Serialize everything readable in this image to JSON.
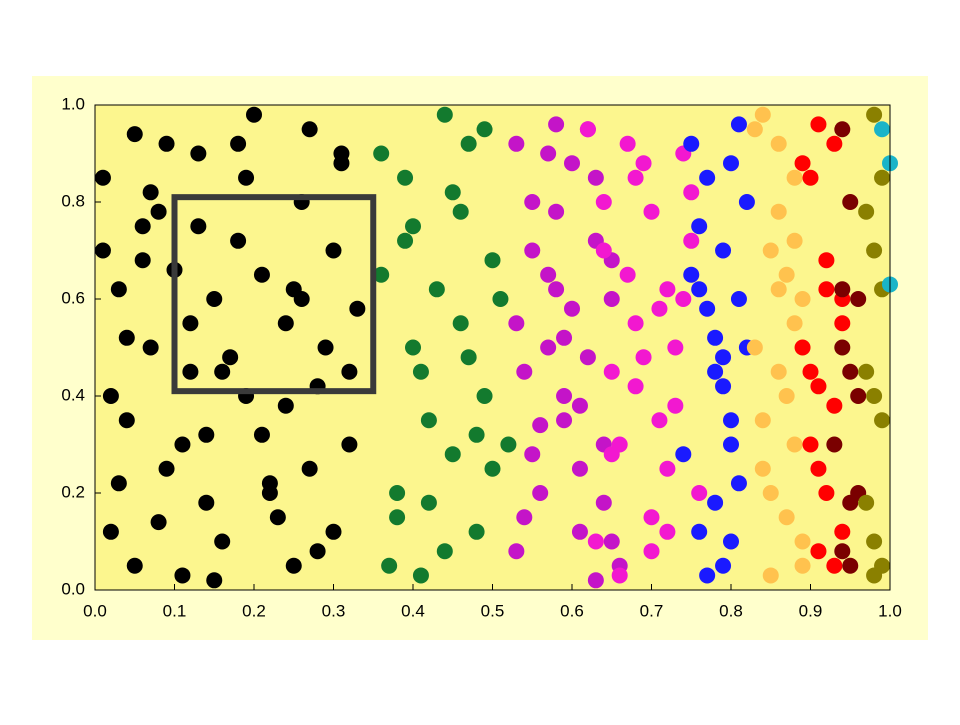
{
  "chart_data": {
    "type": "scatter",
    "xlim": [
      0,
      1
    ],
    "ylim": [
      0,
      1
    ],
    "xticks": [
      {
        "value": 0,
        "label": "0.0"
      },
      {
        "value": 0.1,
        "label": "0.1"
      },
      {
        "value": 0.2,
        "label": "0.2"
      },
      {
        "value": 0.3,
        "label": "0.3"
      },
      {
        "value": 0.4,
        "label": "0.4"
      },
      {
        "value": 0.5,
        "label": "0.5"
      },
      {
        "value": 0.6,
        "label": "0.6"
      },
      {
        "value": 0.7,
        "label": "0.7"
      },
      {
        "value": 0.8,
        "label": "0.8"
      },
      {
        "value": 0.9,
        "label": "0.9"
      },
      {
        "value": 1,
        "label": "1.0"
      }
    ],
    "yticks": [
      {
        "value": 0,
        "label": "0.0"
      },
      {
        "value": 0.2,
        "label": "0.2"
      },
      {
        "value": 0.4,
        "label": "0.4"
      },
      {
        "value": 0.6,
        "label": "0.6"
      },
      {
        "value": 0.8,
        "label": "0.8"
      },
      {
        "value": 1,
        "label": "1.0"
      }
    ],
    "selection": {
      "x": [
        0.1,
        0.35
      ],
      "y": [
        0.41,
        0.81
      ],
      "color": "#3a3a3a"
    },
    "series": [
      {
        "color": "#000000",
        "x": [
          0.01,
          0.03,
          0.05,
          0.02,
          0.08,
          0.04,
          0.11,
          0.07,
          0.13,
          0.15,
          0.18,
          0.21,
          0.24,
          0.27,
          0.3,
          0.32,
          0.19,
          0.22,
          0.16,
          0.09,
          0.06,
          0.12,
          0.25,
          0.28,
          0.31,
          0.14,
          0.2,
          0.23,
          0.26,
          0.29,
          0.02,
          0.05,
          0.1,
          0.17,
          0.33,
          0.03,
          0.08,
          0.15,
          0.19,
          0.24,
          0.27,
          0.3,
          0.12,
          0.06,
          0.21,
          0.18,
          0.25,
          0.32,
          0.09,
          0.14,
          0.01,
          0.04,
          0.11,
          0.28,
          0.31,
          0.22,
          0.16,
          0.07,
          0.13,
          0.26
        ],
        "values": [
          0.85,
          0.62,
          0.94,
          0.12,
          0.78,
          0.35,
          0.03,
          0.5,
          0.9,
          0.6,
          0.72,
          0.65,
          0.55,
          0.95,
          0.7,
          0.3,
          0.4,
          0.2,
          0.1,
          0.25,
          0.68,
          0.45,
          0.05,
          0.42,
          0.88,
          0.32,
          0.98,
          0.15,
          0.8,
          0.5,
          0.4,
          0.05,
          0.66,
          0.48,
          0.58,
          0.22,
          0.14,
          0.02,
          0.85,
          0.38,
          0.25,
          0.12,
          0.55,
          0.75,
          0.32,
          0.92,
          0.62,
          0.45,
          0.92,
          0.18,
          0.7,
          0.52,
          0.3,
          0.08,
          0.9,
          0.22,
          0.45,
          0.82,
          0.75,
          0.6
        ]
      },
      {
        "color": "#137a2e",
        "x": [
          0.36,
          0.38,
          0.4,
          0.42,
          0.44,
          0.46,
          0.48,
          0.5,
          0.52,
          0.37,
          0.39,
          0.41,
          0.43,
          0.45,
          0.47,
          0.49,
          0.51,
          0.38,
          0.4,
          0.44,
          0.46,
          0.48,
          0.5,
          0.36,
          0.42,
          0.45,
          0.49,
          0.41,
          0.47,
          0.39
        ],
        "values": [
          0.9,
          0.2,
          0.75,
          0.35,
          0.98,
          0.55,
          0.12,
          0.68,
          0.3,
          0.05,
          0.85,
          0.45,
          0.62,
          0.28,
          0.92,
          0.4,
          0.6,
          0.15,
          0.5,
          0.08,
          0.78,
          0.32,
          0.25,
          0.65,
          0.18,
          0.82,
          0.95,
          0.03,
          0.48,
          0.72
        ]
      },
      {
        "color": "#c414c8",
        "x": [
          0.53,
          0.55,
          0.57,
          0.59,
          0.61,
          0.63,
          0.65,
          0.54,
          0.56,
          0.58,
          0.6,
          0.62,
          0.64,
          0.66,
          0.53,
          0.55,
          0.57,
          0.59,
          0.61,
          0.63,
          0.65,
          0.54,
          0.56,
          0.58,
          0.6,
          0.62,
          0.64,
          0.53,
          0.57,
          0.61,
          0.65,
          0.55,
          0.59,
          0.63,
          0.58
        ],
        "values": [
          0.92,
          0.7,
          0.5,
          0.35,
          0.12,
          0.85,
          0.6,
          0.45,
          0.2,
          0.78,
          0.58,
          0.95,
          0.3,
          0.05,
          0.55,
          0.8,
          0.65,
          0.4,
          0.25,
          0.72,
          0.1,
          0.15,
          0.34,
          0.62,
          0.88,
          0.48,
          0.18,
          0.08,
          0.9,
          0.38,
          0.68,
          0.28,
          0.52,
          0.02,
          0.96
        ]
      },
      {
        "color": "#f218d0",
        "x": [
          0.62,
          0.64,
          0.66,
          0.68,
          0.7,
          0.72,
          0.74,
          0.76,
          0.63,
          0.65,
          0.67,
          0.69,
          0.71,
          0.73,
          0.75,
          0.66,
          0.68,
          0.7,
          0.72,
          0.74,
          0.64,
          0.67,
          0.7,
          0.73,
          0.75,
          0.69,
          0.71,
          0.65,
          0.72,
          0.68
        ],
        "values": [
          0.95,
          0.8,
          0.3,
          0.55,
          0.78,
          0.62,
          0.9,
          0.2,
          0.1,
          0.45,
          0.65,
          0.88,
          0.35,
          0.5,
          0.72,
          0.03,
          0.42,
          0.15,
          0.25,
          0.6,
          0.7,
          0.92,
          0.08,
          0.38,
          0.82,
          0.48,
          0.58,
          0.28,
          0.12,
          0.85
        ]
      },
      {
        "color": "#1a1aff",
        "x": [
          0.75,
          0.77,
          0.79,
          0.81,
          0.78,
          0.8,
          0.76,
          0.82,
          0.74,
          0.79,
          0.81,
          0.77,
          0.8,
          0.78,
          0.76,
          0.82,
          0.75,
          0.79,
          0.8,
          0.77,
          0.81,
          0.78,
          0.76,
          0.8,
          0.79
        ],
        "values": [
          0.92,
          0.85,
          0.7,
          0.6,
          0.45,
          0.3,
          0.12,
          0.5,
          0.28,
          0.05,
          0.96,
          0.58,
          0.35,
          0.18,
          0.75,
          0.8,
          0.65,
          0.42,
          0.1,
          0.03,
          0.22,
          0.52,
          0.62,
          0.88,
          0.48
        ]
      },
      {
        "color": "#ffc24e",
        "x": [
          0.84,
          0.86,
          0.88,
          0.85,
          0.87,
          0.89,
          0.83,
          0.86,
          0.88,
          0.84,
          0.87,
          0.89,
          0.85,
          0.86,
          0.88,
          0.84,
          0.87,
          0.85,
          0.89,
          0.86,
          0.83,
          0.88
        ],
        "values": [
          0.98,
          0.92,
          0.85,
          0.7,
          0.65,
          0.6,
          0.5,
          0.45,
          0.3,
          0.25,
          0.15,
          0.1,
          0.2,
          0.78,
          0.55,
          0.35,
          0.4,
          0.03,
          0.05,
          0.62,
          0.95,
          0.72
        ]
      },
      {
        "color": "#ff0000",
        "x": [
          0.91,
          0.93,
          0.9,
          0.92,
          0.94,
          0.89,
          0.91,
          0.93,
          0.9,
          0.92,
          0.94,
          0.91,
          0.93,
          0.9,
          0.92,
          0.89,
          0.94,
          0.91
        ],
        "values": [
          0.96,
          0.92,
          0.85,
          0.62,
          0.6,
          0.5,
          0.42,
          0.38,
          0.3,
          0.2,
          0.12,
          0.08,
          0.05,
          0.45,
          0.68,
          0.88,
          0.55,
          0.25
        ]
      },
      {
        "color": "#7a0000",
        "x": [
          0.94,
          0.95,
          0.96,
          0.94,
          0.95,
          0.93,
          0.96,
          0.95,
          0.94,
          0.96,
          0.95,
          0.94
        ],
        "values": [
          0.95,
          0.8,
          0.6,
          0.5,
          0.45,
          0.3,
          0.2,
          0.05,
          0.62,
          0.4,
          0.18,
          0.08
        ]
      },
      {
        "color": "#8a8000",
        "x": [
          0.98,
          0.99,
          0.97,
          0.98,
          0.99,
          0.97,
          0.98,
          0.99,
          0.97,
          0.98,
          0.99,
          0.98
        ],
        "values": [
          0.98,
          0.85,
          0.78,
          0.7,
          0.62,
          0.45,
          0.4,
          0.35,
          0.18,
          0.1,
          0.05,
          0.03
        ]
      },
      {
        "color": "#1ab4c8",
        "x": [
          0.99,
          1,
          1
        ],
        "values": [
          0.95,
          0.88,
          0.63
        ]
      }
    ]
  }
}
